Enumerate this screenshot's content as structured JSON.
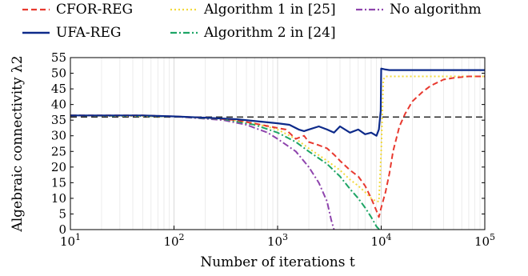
{
  "chart_data": {
    "type": "line",
    "xlabel": "Number of iterations t",
    "ylabel": "Algebraic connectivity λ2",
    "x_scale": "log",
    "xlim": [
      10,
      100000
    ],
    "ylim": [
      0,
      55
    ],
    "x_ticks": [
      10,
      100,
      1000,
      10000,
      100000
    ],
    "x_tick_labels": [
      [
        "10",
        "1"
      ],
      [
        "10",
        "2"
      ],
      [
        "10",
        "3"
      ],
      [
        "10",
        "4"
      ],
      [
        "10",
        "5"
      ]
    ],
    "y_ticks": [
      0,
      5,
      10,
      15,
      20,
      25,
      30,
      35,
      40,
      45,
      50,
      55
    ],
    "grid": "vertical log minor grid",
    "legend_position": "top",
    "reference_line": {
      "y": 36,
      "style": "dashed",
      "color": "#333333"
    },
    "series": [
      {
        "name": "CFOR-REG",
        "color": "#e8392f",
        "style": "dashed",
        "points": [
          [
            10,
            36.5
          ],
          [
            50,
            36.5
          ],
          [
            100,
            36.2
          ],
          [
            200,
            35.8
          ],
          [
            400,
            35
          ],
          [
            700,
            33.5
          ],
          [
            1000,
            32.5
          ],
          [
            1200,
            32
          ],
          [
            1500,
            29
          ],
          [
            1800,
            30
          ],
          [
            2000,
            28
          ],
          [
            2500,
            27
          ],
          [
            3000,
            26
          ],
          [
            3500,
            24
          ],
          [
            4000,
            22
          ],
          [
            5000,
            19
          ],
          [
            6000,
            17
          ],
          [
            7000,
            14
          ],
          [
            8000,
            10
          ],
          [
            9000,
            6
          ],
          [
            9500,
            4
          ],
          [
            10000,
            7
          ],
          [
            11000,
            12
          ],
          [
            12000,
            18
          ],
          [
            13000,
            25
          ],
          [
            15000,
            33
          ],
          [
            17000,
            37
          ],
          [
            20000,
            41
          ],
          [
            25000,
            44
          ],
          [
            30000,
            46
          ],
          [
            40000,
            48
          ],
          [
            50000,
            48.5
          ],
          [
            70000,
            49
          ],
          [
            100000,
            49
          ]
        ]
      },
      {
        "name": "UFA-REG",
        "color": "#0d2a8a",
        "style": "solid",
        "points": [
          [
            10,
            36.5
          ],
          [
            50,
            36.5
          ],
          [
            100,
            36.2
          ],
          [
            200,
            35.8
          ],
          [
            400,
            35.3
          ],
          [
            700,
            34.5
          ],
          [
            1000,
            34
          ],
          [
            1300,
            33.5
          ],
          [
            1600,
            32
          ],
          [
            1800,
            31.5
          ],
          [
            2000,
            32
          ],
          [
            2500,
            33
          ],
          [
            3000,
            32
          ],
          [
            3500,
            31
          ],
          [
            4000,
            33
          ],
          [
            5000,
            31
          ],
          [
            6000,
            32
          ],
          [
            7000,
            30.5
          ],
          [
            8000,
            31
          ],
          [
            9000,
            30
          ],
          [
            9500,
            32
          ],
          [
            9900,
            38
          ],
          [
            10000,
            51.5
          ],
          [
            11000,
            51.2
          ],
          [
            12000,
            51
          ],
          [
            20000,
            51
          ],
          [
            50000,
            51
          ],
          [
            100000,
            51
          ]
        ]
      },
      {
        "name": "Algorithm 1 in [25]",
        "color": "#f2d93b",
        "style": "dotted",
        "points": [
          [
            10,
            36.5
          ],
          [
            100,
            36.2
          ],
          [
            300,
            35.5
          ],
          [
            600,
            34
          ],
          [
            1000,
            32
          ],
          [
            1500,
            29
          ],
          [
            2000,
            26
          ],
          [
            3000,
            22
          ],
          [
            4000,
            19
          ],
          [
            5000,
            16
          ],
          [
            6000,
            14
          ],
          [
            7000,
            12
          ],
          [
            8000,
            10
          ],
          [
            9000,
            9
          ],
          [
            9500,
            9
          ],
          [
            10000,
            25
          ],
          [
            10500,
            48
          ],
          [
            11000,
            49
          ],
          [
            20000,
            49
          ],
          [
            100000,
            49
          ]
        ]
      },
      {
        "name": "Algorithm 2 in [24]",
        "color": "#1ea566",
        "style": "dashdot",
        "points": [
          [
            10,
            36.5
          ],
          [
            100,
            36.2
          ],
          [
            300,
            35.3
          ],
          [
            600,
            33.5
          ],
          [
            1000,
            31
          ],
          [
            1500,
            28
          ],
          [
            2000,
            25
          ],
          [
            3000,
            21
          ],
          [
            4000,
            17
          ],
          [
            5000,
            13
          ],
          [
            6000,
            10
          ],
          [
            7000,
            7
          ],
          [
            8000,
            4
          ],
          [
            9000,
            1
          ],
          [
            9600,
            0
          ]
        ]
      },
      {
        "name": "No algorithm",
        "color": "#8e44ad",
        "style": "dashdot",
        "points": [
          [
            10,
            36.5
          ],
          [
            100,
            36.2
          ],
          [
            300,
            35
          ],
          [
            500,
            33.5
          ],
          [
            800,
            31
          ],
          [
            1000,
            29
          ],
          [
            1500,
            25
          ],
          [
            2000,
            20
          ],
          [
            2500,
            15
          ],
          [
            3000,
            9
          ],
          [
            3300,
            3
          ],
          [
            3500,
            0
          ]
        ]
      }
    ]
  }
}
